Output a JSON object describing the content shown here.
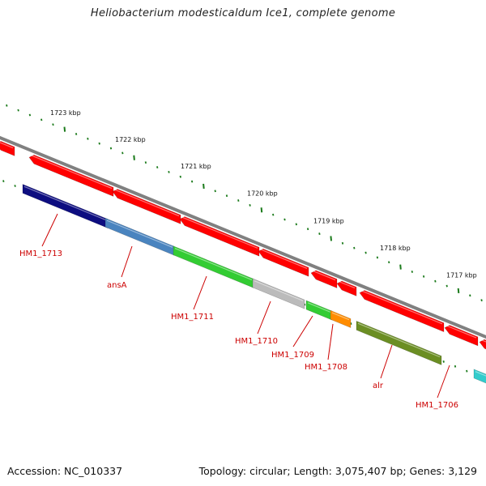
{
  "title": "Heliobacterium modesticaldum Ice1, complete genome",
  "accession": "Accession: NC_010337",
  "summary": "Topology: circular; Length: 3,075,407 bp; Genes: 3,129",
  "colors": {
    "backbone": "#808080",
    "forward_gene": "#ff0000",
    "tick": "#1a7a1a",
    "label": "#cc0000"
  },
  "scale_labels": [
    "1723 kbp",
    "1722 kbp",
    "1721 kbp",
    "1720 kbp",
    "1719 kbp",
    "1718 kbp",
    "1717 kbp"
  ],
  "gene_labels": [
    "HM1_1713",
    "ansA",
    "HM1_1711",
    "HM1_1710",
    "HM1_1709",
    "HM1_1708",
    "alr",
    "HM1_1706"
  ],
  "gene_colors": [
    "#0d0d80",
    "#4a84bf",
    "#33cc33",
    "#bbbbbb",
    "#33cc33",
    "#ff8c00",
    "#6b8e23",
    "#33cccc"
  ]
}
